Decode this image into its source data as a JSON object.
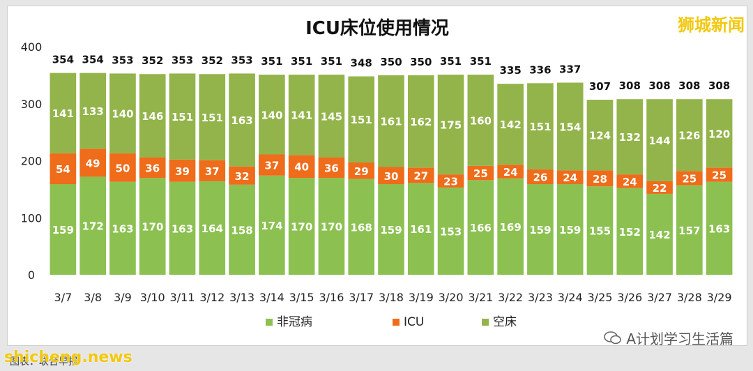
{
  "brand": "狮城新闻",
  "watermark": "A计划学习生活篇",
  "site": "shicheng.news",
  "source": "图表：联合早报",
  "colors": {
    "non_covid": "#8cc152",
    "icu": "#ee6c1a",
    "empty": "#93b44b"
  },
  "chart_data": {
    "type": "bar",
    "stacked": true,
    "title": "ICU床位使用情况",
    "xlabel": "",
    "ylabel": "",
    "ylim": [
      0,
      400
    ],
    "yticks": [
      0,
      100,
      200,
      300,
      400
    ],
    "grid": false,
    "legend_position": "bottom",
    "categories": [
      "3/7",
      "3/8",
      "3/9",
      "3/10",
      "3/11",
      "3/12",
      "3/13",
      "3/14",
      "3/15",
      "3/16",
      "3/17",
      "3/18",
      "3/19",
      "3/20",
      "3/21",
      "3/22",
      "3/23",
      "3/24",
      "3/25",
      "3/26",
      "3/27",
      "3/28",
      "3/29"
    ],
    "series": [
      {
        "name": "非冠病",
        "values": [
          159,
          172,
          163,
          170,
          163,
          164,
          158,
          174,
          170,
          170,
          168,
          159,
          161,
          153,
          166,
          169,
          159,
          159,
          155,
          152,
          142,
          157,
          163
        ]
      },
      {
        "name": "ICU",
        "values": [
          54,
          49,
          50,
          36,
          39,
          37,
          32,
          37,
          40,
          36,
          29,
          30,
          27,
          23,
          25,
          24,
          26,
          24,
          28,
          24,
          22,
          25,
          25
        ]
      },
      {
        "name": "空床",
        "values": [
          141,
          133,
          140,
          146,
          151,
          151,
          163,
          140,
          141,
          145,
          151,
          161,
          162,
          175,
          160,
          142,
          151,
          154,
          124,
          132,
          144,
          126,
          120
        ]
      }
    ],
    "totals": [
      354,
      354,
      353,
      352,
      353,
      352,
      353,
      351,
      351,
      351,
      348,
      350,
      350,
      351,
      351,
      335,
      336,
      337,
      307,
      308,
      308,
      308,
      308
    ]
  }
}
